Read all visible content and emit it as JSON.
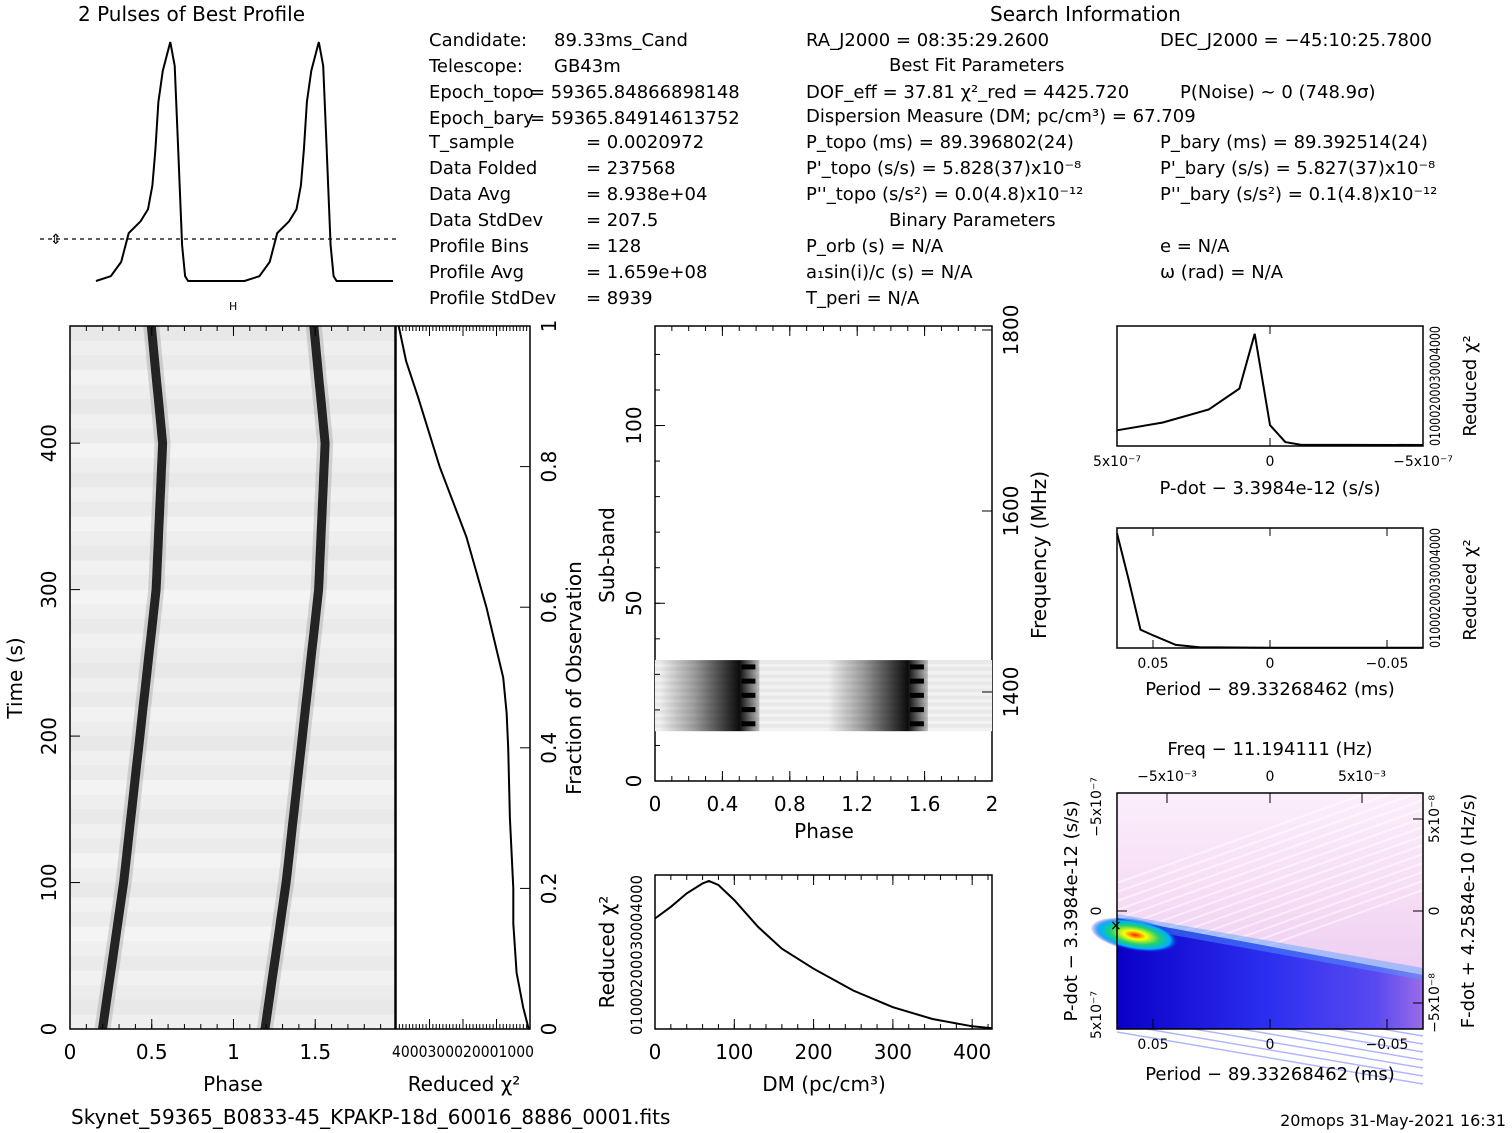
{
  "header": {
    "profile_title": "2 Pulses of Best Profile",
    "search_title": "Search Information",
    "bestfit_title": "Best Fit Parameters",
    "binary_title": "Binary Parameters"
  },
  "info_left": [
    [
      "Candidate:",
      "89.33ms_Cand"
    ],
    [
      "Telescope:",
      "GB43m"
    ],
    [
      "Epoch_topo",
      "= 59365.84866898148"
    ],
    [
      "Epoch_bary",
      "= 59365.84914613752"
    ],
    [
      "T_sample",
      "= 0.0020972"
    ],
    [
      "Data Folded",
      "= 237568"
    ],
    [
      "Data Avg",
      "= 8.938e+04"
    ],
    [
      "Data StdDev",
      "= 207.5"
    ],
    [
      "Profile Bins",
      "= 128"
    ],
    [
      "Profile Avg",
      "= 1.659e+08"
    ],
    [
      "Profile StdDev",
      "= 8939"
    ]
  ],
  "info_right": {
    "ra": "RA_J2000 = 08:35:29.2600",
    "dec": "DEC_J2000 = −45:10:25.7800",
    "dof": "DOF_eff = 37.81  χ²_red = 4425.720",
    "pnoise": "P(Noise) ~ 0    (748.9σ)",
    "dm": "Dispersion Measure (DM; pc/cm³) = 67.709",
    "p_topo": "P_topo (ms) =  89.396802(24)",
    "p_bary": "P_bary (ms) =  89.392514(24)",
    "pd_topo": "P'_topo (s/s) =  5.828(37)x10⁻⁸",
    "pd_bary": "P'_bary (s/s) =  5.827(37)x10⁻⁸",
    "pdd_topo": "P''_topo (s/s²) = 0.0(4.8)x10⁻¹²",
    "pdd_bary": "P''_bary (s/s²) =  0.1(4.8)x10⁻¹²",
    "porb": "P_orb (s) = N/A",
    "ecc": "e = N/A",
    "a1": "a₁sin(i)/c (s) = N/A",
    "omega": "ω (rad) = N/A",
    "tperi": "T_peri = N/A"
  },
  "footer": {
    "filename": "Skynet_59365_B0833-45_KPAKP-18d_60016_8886_0001.fits",
    "stamp": "20mops 31-May-2021 16:31"
  },
  "colors": {
    "ink": "#000000",
    "colormap": [
      "#ffffff",
      "#f3d6f2",
      "#c98fe0",
      "#3a2bf0",
      "#0a00c8",
      "#00b0ff",
      "#20d070",
      "#ffff00",
      "#ff2000"
    ]
  },
  "chart_data": [
    {
      "type": "line",
      "name": "profile",
      "title": "2 Pulses of Best Profile",
      "x": [
        0,
        0.1,
        0.17,
        0.22,
        0.3,
        0.35,
        0.38,
        0.4,
        0.42,
        0.45,
        0.5,
        0.53,
        0.55,
        0.58,
        0.6,
        0.62,
        0.65,
        0.7,
        0.8,
        0.9,
        1.0
      ],
      "y": [
        0.0,
        0.02,
        0.08,
        0.2,
        0.25,
        0.3,
        0.4,
        0.55,
        0.75,
        0.88,
        1.0,
        0.9,
        0.6,
        0.15,
        0.02,
        0.0,
        0.0,
        0.0,
        0.0,
        0.0,
        0.0
      ],
      "periods": 2,
      "mean_level": 0.23
    },
    {
      "type": "heatmap",
      "name": "time-phase",
      "xlabel": "Phase",
      "ylabel": "Time (s)",
      "xlim": [
        0,
        2
      ],
      "ylim": [
        0,
        480
      ],
      "xticks": [
        "0",
        "0.5",
        "1",
        "1.5"
      ],
      "yticks": [
        "0",
        "100",
        "200",
        "300",
        "400"
      ],
      "pulse_track": {
        "time": [
          0,
          100,
          200,
          300,
          400,
          480
        ],
        "phase": [
          0.2,
          0.33,
          0.43,
          0.53,
          0.57,
          0.5
        ]
      }
    },
    {
      "type": "line",
      "name": "reduced-chi2-vs-time",
      "xlabel": "Reduced χ²",
      "ylabel": "Fraction of Observation",
      "xlim": [
        4000,
        0
      ],
      "ylim": [
        0,
        1
      ],
      "xtick_text": "4000300020001000",
      "yticks": [
        "0",
        "0.2",
        "0.4",
        "0.6",
        "0.8",
        "1"
      ],
      "fraction": [
        0,
        0.03,
        0.08,
        0.15,
        0.2,
        0.3,
        0.4,
        0.45,
        0.5,
        0.6,
        0.7,
        0.8,
        0.9,
        0.95,
        1.0
      ],
      "chi2": [
        40,
        200,
        400,
        500,
        500,
        600,
        650,
        700,
        800,
        1300,
        1900,
        2700,
        3350,
        3700,
        3920
      ]
    },
    {
      "type": "heatmap",
      "name": "subband-phase",
      "xlabel": "Phase",
      "ylabel": "Sub-band",
      "y2label": "Frequency (MHz)",
      "xlim": [
        0,
        2
      ],
      "ylim": [
        0,
        128
      ],
      "xticks": [
        "0",
        "0.4",
        "0.8",
        "1.2",
        "1.6",
        "2"
      ],
      "yticks": [
        "0",
        "50",
        "100"
      ],
      "y2ticks": [
        "1400",
        "1600",
        "1800"
      ],
      "band_rows": [
        14,
        34
      ],
      "pulse_phases": [
        0.56,
        1.56
      ]
    },
    {
      "type": "line",
      "name": "dm-curve",
      "xlabel": "DM (pc/cm³)",
      "ylabel": "Reduced χ²",
      "xlim": [
        0,
        425
      ],
      "ylim": [
        0,
        4600
      ],
      "xticks": [
        "0",
        "100",
        "200",
        "300",
        "400"
      ],
      "ytick_text": "01000200030004000",
      "x": [
        0,
        20,
        40,
        60,
        68,
        80,
        100,
        130,
        160,
        200,
        250,
        300,
        350,
        400,
        425
      ],
      "y": [
        3300,
        3650,
        4050,
        4350,
        4420,
        4300,
        3850,
        3050,
        2400,
        1800,
        1150,
        650,
        300,
        80,
        20
      ]
    },
    {
      "type": "line",
      "name": "pdot-curve",
      "xlabel": "P-dot − 3.3984e-12 (s/s)",
      "ylabel": "Reduced χ²",
      "xlim": [
        5e-07,
        -5e-07
      ],
      "xticks": [
        "5x10⁻⁷",
        "0",
        "−5x10⁻⁷"
      ],
      "ytick_text": "01000200030004000",
      "x": [
        5e-07,
        3.5e-07,
        2e-07,
        1e-07,
        5e-08,
        0,
        -5e-08,
        -1e-07,
        -5e-07
      ],
      "y": [
        600,
        900,
        1400,
        2200,
        4300,
        800,
        150,
        50,
        40
      ]
    },
    {
      "type": "line",
      "name": "period-curve",
      "xlabel": "Period − 89.33268462 (ms)",
      "ylabel": "Reduced χ²",
      "xlim": [
        0.065,
        -0.065
      ],
      "xticks": [
        "0.05",
        "0",
        "−0.05"
      ],
      "ytick_text": "01000200030004000",
      "x": [
        0.065,
        0.06,
        0.055,
        0.05,
        0.04,
        0.03,
        0.0,
        -0.065
      ],
      "y": [
        4400,
        2600,
        700,
        500,
        120,
        30,
        10,
        10
      ]
    },
    {
      "type": "heatmap",
      "name": "period-pdot",
      "title": "Freq − 11.194111 (Hz)",
      "xlabel": "Period − 89.33268462 (ms)",
      "ylabel": "P-dot − 3.3984e-12 (s/s)",
      "y2label": "F-dot + 4.2584e-10 (Hz/s)",
      "xticks": [
        "0.05",
        "0",
        "−0.05"
      ],
      "x2ticks": [
        "−5x10⁻³",
        "0",
        "5x10⁻³"
      ],
      "yticks": [
        "5x10⁻⁷",
        "0",
        "−5x10⁻⁷"
      ],
      "y2ticks": [
        "−5x10⁻⁸",
        "0",
        "5x10⁻⁸"
      ]
    }
  ]
}
